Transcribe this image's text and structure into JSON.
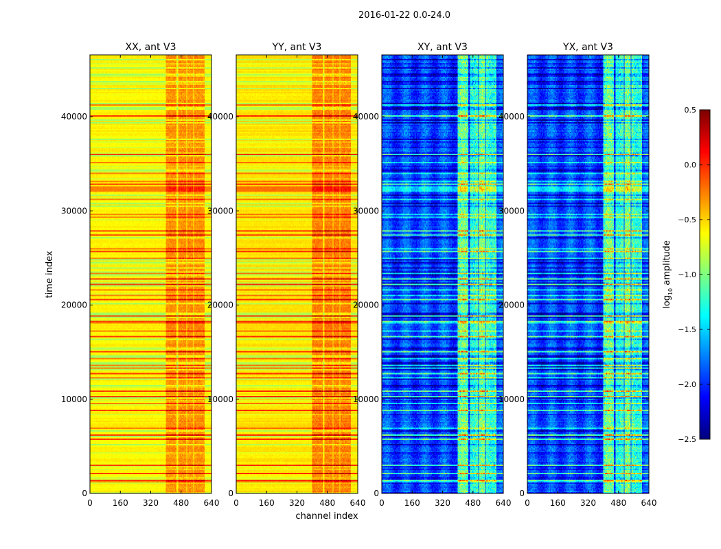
{
  "chart_data": {
    "type": "heatmap",
    "suptitle": "2016-01-22 0.0-24.0",
    "xlabel": "channel index",
    "ylabel": "time index",
    "xlim": [
      0,
      640
    ],
    "ylim": [
      0,
      46560
    ],
    "xticks": [
      "0",
      "160",
      "320",
      "480",
      "640"
    ],
    "yticks": [
      "0",
      "10000",
      "20000",
      "30000",
      "40000"
    ],
    "xtick_values": [
      0,
      160,
      320,
      480,
      640
    ],
    "ytick_values": [
      0,
      10000,
      20000,
      30000,
      40000
    ],
    "colormap": "jet",
    "panels": [
      {
        "title": "XX, ant V3",
        "baseline_log10": -0.6,
        "rfi_channels": [
          400,
          600
        ],
        "rfi_log10": -0.25
      },
      {
        "title": "YY, ant V3",
        "baseline_log10": -0.55,
        "rfi_channels": [
          400,
          600
        ],
        "rfi_log10": -0.2
      },
      {
        "title": "XY, ant V3",
        "baseline_log10": -1.9,
        "rfi_channels": [
          400,
          600
        ],
        "rfi_log10": -1.0
      },
      {
        "title": "YX, ant V3",
        "baseline_log10": -1.9,
        "rfi_channels": [
          400,
          600
        ],
        "rfi_log10": -1.0
      }
    ],
    "colorbar": {
      "label": "log10 amplitude",
      "label_main": "log",
      "label_sub": "10",
      "label_rest": " amplitude",
      "range": [
        -2.5,
        0.5
      ],
      "ticks": [
        "0.5",
        "0.0",
        "−0.5",
        "−1.0",
        "−1.5",
        "−2.0",
        "−2.5"
      ],
      "tick_values": [
        0.5,
        0.0,
        -0.5,
        -1.0,
        -1.5,
        -2.0,
        -2.5
      ]
    }
  }
}
